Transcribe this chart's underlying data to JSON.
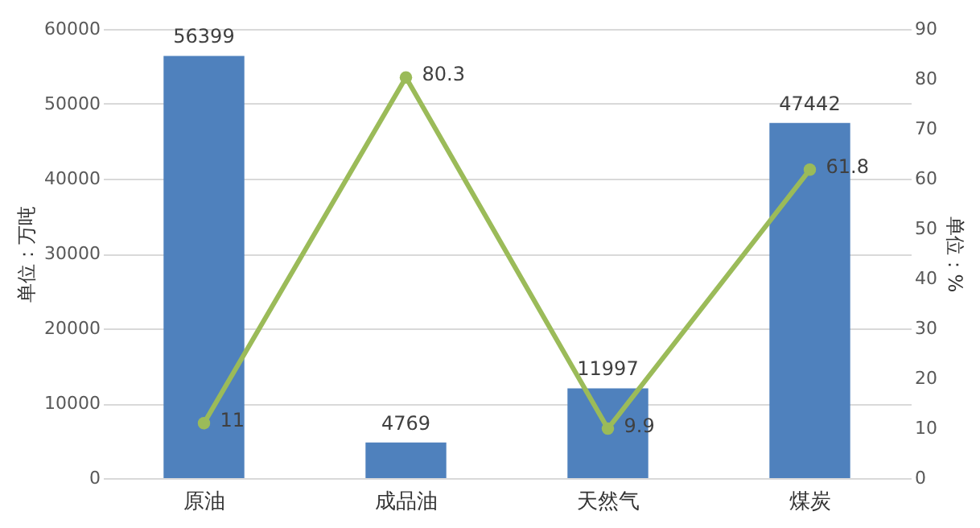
{
  "chart_data": {
    "type": "bar",
    "categories": [
      "原油",
      "成品油",
      "天然气",
      "煤炭"
    ],
    "ylabel": "单位：万吨",
    "y2label": "单位：%",
    "series": [
      {
        "color": "#4f81bd",
        "values": [
          56399,
          4769,
          11997,
          47442
        ]
      },
      {
        "type": "line",
        "axis": "y2",
        "color": "#9bbb59",
        "values": [
          11,
          80.3,
          9.9,
          61.8
        ],
        "marker": "circle"
      }
    ],
    "ylim": [
      0,
      60000
    ],
    "yticks": [
      0,
      10000,
      20000,
      30000,
      40000,
      50000,
      60000
    ],
    "y2lim": [
      0,
      90
    ],
    "y2ticks": [
      0,
      10,
      20,
      30,
      40,
      50,
      60,
      70,
      80,
      90
    ],
    "grid": "y",
    "data_labels": true
  }
}
